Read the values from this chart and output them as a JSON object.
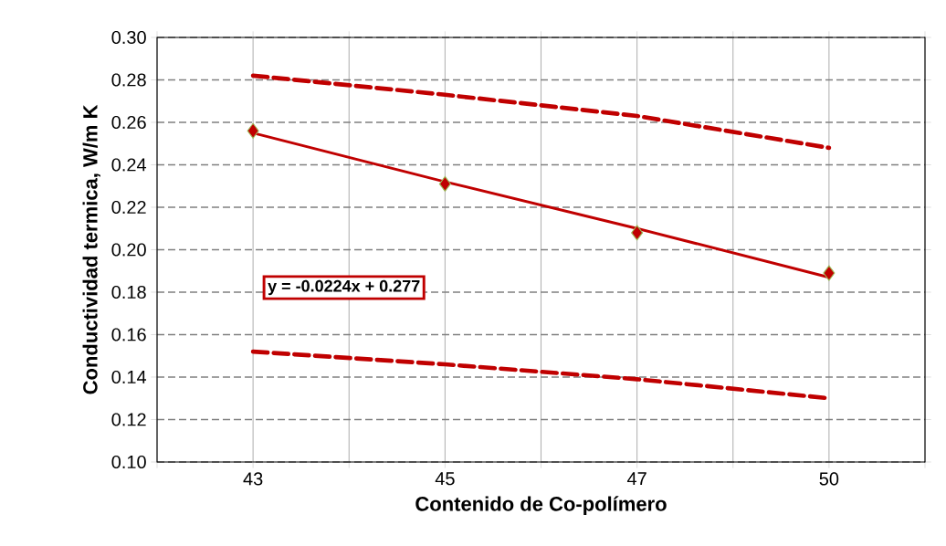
{
  "chart_data": {
    "type": "line",
    "xlabel": "Contenido de Co-polímero",
    "ylabel": "Conductividad termica, W/m K",
    "categories": [
      "43",
      "45",
      "47",
      "50"
    ],
    "series": [
      {
        "type": "scatter",
        "color": "#c00000",
        "values": [
          0.256,
          0.231,
          0.208,
          0.189
        ],
        "marker": "diamond"
      },
      {
        "color": "#c00000",
        "values": [
          0.255,
          0.232,
          0.21,
          0.187
        ],
        "marker": "none",
        "line_style": "solid"
      },
      {
        "color": "#c00000",
        "values": [
          0.282,
          0.273,
          0.263,
          0.248
        ],
        "marker": "none",
        "line_style": "dashed"
      },
      {
        "color": "#c00000",
        "values": [
          0.152,
          0.146,
          0.139,
          0.13
        ],
        "marker": "none",
        "line_style": "dashed"
      }
    ],
    "ylim": [
      0.1,
      0.3
    ],
    "yticks": [
      {
        "value": 0.1,
        "label": "0.10"
      },
      {
        "value": 0.12,
        "label": "0.12"
      },
      {
        "value": 0.14,
        "label": "0.14"
      },
      {
        "value": 0.16,
        "label": "0.16"
      },
      {
        "value": 0.18,
        "label": "0.18"
      },
      {
        "value": 0.2,
        "label": "0.20"
      },
      {
        "value": 0.22,
        "label": "0.22"
      },
      {
        "value": 0.24,
        "label": "0.24"
      },
      {
        "value": 0.26,
        "label": "0.26"
      },
      {
        "value": 0.28,
        "label": "0.28"
      },
      {
        "value": 0.3,
        "label": "0.30"
      }
    ],
    "grid": true,
    "annotations": [
      "y = -0.0224x + 0.277"
    ]
  }
}
